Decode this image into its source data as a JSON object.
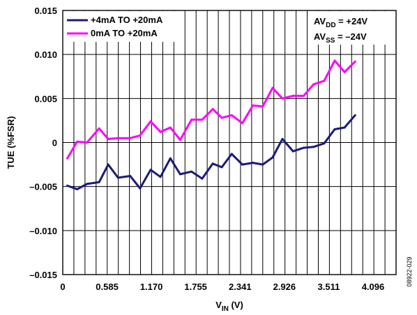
{
  "chart_data": {
    "type": "line",
    "xlabel": "V",
    "xlabel_sub": "IN",
    "xlabel_unit": " (V)",
    "ylabel": "TUE (%FSR)",
    "xlim": [
      0,
      4.4
    ],
    "ylim": [
      -0.015,
      0.015
    ],
    "x_ticks": [
      0,
      0.585,
      1.17,
      1.755,
      2.341,
      2.926,
      3.511,
      4.096
    ],
    "x_tick_labels": [
      "0",
      "0.585",
      "1.170",
      "1.755",
      "2.341",
      "2.926",
      "3.511",
      "4.096"
    ],
    "y_ticks": [
      0.015,
      0.01,
      0.005,
      0,
      -0.005,
      -0.01,
      -0.015
    ],
    "y_tick_labels": [
      "0.015",
      "0.010",
      "0.005",
      "0",
      "–0.005",
      "–0.010",
      "–0.015"
    ],
    "grid": {
      "vertical_lines": 30,
      "horizontal": "major"
    },
    "legend_position": "top-left",
    "annotation": {
      "line1_main": "AV",
      "line1_sub": "DD",
      "line1_rest": " = +24V",
      "line2_main": "AV",
      "line2_sub": "SS",
      "line2_rest": " = –24V"
    },
    "figure_id": "08922-029",
    "x": [
      0.06,
      0.19,
      0.32,
      0.48,
      0.6,
      0.73,
      0.89,
      1.02,
      1.16,
      1.29,
      1.42,
      1.55,
      1.7,
      1.84,
      1.98,
      2.1,
      2.23,
      2.37,
      2.51,
      2.64,
      2.77,
      2.9,
      3.04,
      3.18,
      3.31,
      3.45,
      3.59,
      3.72,
      3.86,
      3.99,
      4.13
    ],
    "series": [
      {
        "name": "+4mA TO +20mA",
        "color": "#1a1a7a",
        "values": [
          -0.0049,
          -0.0053,
          -0.0047,
          -0.0045,
          -0.0025,
          -0.004,
          -0.0038,
          -0.0052,
          -0.0031,
          -0.0039,
          -0.0018,
          -0.0036,
          -0.0033,
          -0.0041,
          -0.0024,
          -0.0028,
          -0.0013,
          -0.0025,
          -0.0023,
          -0.0025,
          -0.0017,
          0.0004,
          -0.001,
          -0.0006,
          -0.0005,
          -0.0001,
          0.0015,
          0.0017,
          0.0031,
          null,
          null
        ]
      },
      {
        "name": "0mA TO +20mA",
        "color": "#ff00ff",
        "values": [
          -0.0018,
          0.0001,
          0.0,
          0.0016,
          0.0004,
          0.0005,
          0.0005,
          0.0008,
          0.0024,
          0.0012,
          0.0017,
          0.0003,
          0.0026,
          0.0026,
          0.0038,
          0.0028,
          0.0031,
          0.0022,
          0.0042,
          0.0041,
          0.0062,
          0.005,
          0.0053,
          0.0053,
          0.0066,
          0.007,
          0.0093,
          0.008,
          0.0092,
          null,
          null
        ]
      }
    ]
  }
}
